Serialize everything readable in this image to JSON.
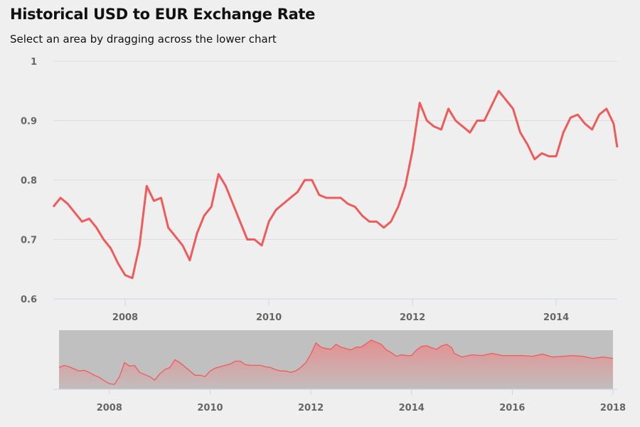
{
  "title": "Historical USD to EUR Exchange Rate",
  "subtitle": "Select an area by dragging across the lower chart",
  "colors": {
    "line": "#ef5b5b",
    "grid": "#dddddd",
    "axis": "#ccd6eb",
    "navigator_mask": "#c0c0c0"
  },
  "chart_data": {
    "type": "line",
    "title": "Historical USD to EUR Exchange Rate",
    "subtitle": "Select an area by dragging across the lower chart",
    "main": {
      "xlim": [
        2007.0,
        2014.85
      ],
      "ylim": [
        0.6,
        1.0
      ],
      "y_ticks": [
        0.6,
        0.7,
        0.8,
        0.9,
        1
      ],
      "x_ticks": [
        2008,
        2010,
        2012,
        2014
      ],
      "grid": true
    },
    "navigator": {
      "xlim": [
        2007.0,
        2018.0
      ],
      "x_ticks": [
        2008,
        2010,
        2012,
        2014,
        2016,
        2018
      ],
      "selected_range": [
        2007.0,
        2018.0
      ]
    },
    "series": [
      {
        "x": [
          2007.0,
          2007.1,
          2007.2,
          2007.3,
          2007.4,
          2007.5,
          2007.6,
          2007.7,
          2007.8,
          2007.9,
          2008.0,
          2008.1,
          2008.2,
          2008.3,
          2008.4,
          2008.5,
          2008.6,
          2008.7,
          2008.8,
          2008.9,
          2009.0,
          2009.1,
          2009.2,
          2009.3,
          2009.4,
          2009.5,
          2009.6,
          2009.7,
          2009.8,
          2009.9,
          2010.0,
          2010.1,
          2010.2,
          2010.3,
          2010.4,
          2010.5,
          2010.6,
          2010.7,
          2010.8,
          2010.9,
          2011.0,
          2011.1,
          2011.2,
          2011.3,
          2011.4,
          2011.5,
          2011.6,
          2011.7,
          2011.8,
          2011.9,
          2012.0,
          2012.1,
          2012.2,
          2012.3,
          2012.4,
          2012.5,
          2012.6,
          2012.7,
          2012.8,
          2012.9,
          2013.0,
          2013.1,
          2013.2,
          2013.3,
          2013.4,
          2013.5,
          2013.6,
          2013.7,
          2013.8,
          2013.9,
          2014.0,
          2014.1,
          2014.2,
          2014.3,
          2014.4,
          2014.5,
          2014.6,
          2014.7,
          2014.8,
          2014.85,
          2015.0,
          2015.2,
          2015.4,
          2015.6,
          2015.8,
          2016.0,
          2016.2,
          2016.4,
          2016.6,
          2016.8,
          2017.0,
          2017.2,
          2017.4,
          2017.6,
          2017.8,
          2018.0
        ],
        "values": [
          0.755,
          0.77,
          0.76,
          0.745,
          0.73,
          0.735,
          0.72,
          0.7,
          0.685,
          0.66,
          0.64,
          0.635,
          0.69,
          0.79,
          0.765,
          0.77,
          0.72,
          0.705,
          0.69,
          0.665,
          0.71,
          0.74,
          0.755,
          0.81,
          0.79,
          0.76,
          0.73,
          0.7,
          0.7,
          0.69,
          0.73,
          0.75,
          0.76,
          0.77,
          0.78,
          0.8,
          0.8,
          0.775,
          0.77,
          0.77,
          0.77,
          0.76,
          0.755,
          0.74,
          0.73,
          0.73,
          0.72,
          0.73,
          0.755,
          0.79,
          0.85,
          0.93,
          0.9,
          0.89,
          0.885,
          0.92,
          0.9,
          0.89,
          0.88,
          0.9,
          0.9,
          0.925,
          0.95,
          0.935,
          0.92,
          0.88,
          0.86,
          0.835,
          0.845,
          0.84,
          0.84,
          0.88,
          0.905,
          0.91,
          0.895,
          0.885,
          0.91,
          0.92,
          0.895,
          0.855,
          0.83,
          0.845,
          0.84,
          0.855,
          0.84,
          0.84,
          0.84,
          0.835,
          0.85,
          0.83,
          0.835,
          0.84,
          0.835,
          0.82,
          0.83,
          0.82
        ]
      }
    ]
  }
}
